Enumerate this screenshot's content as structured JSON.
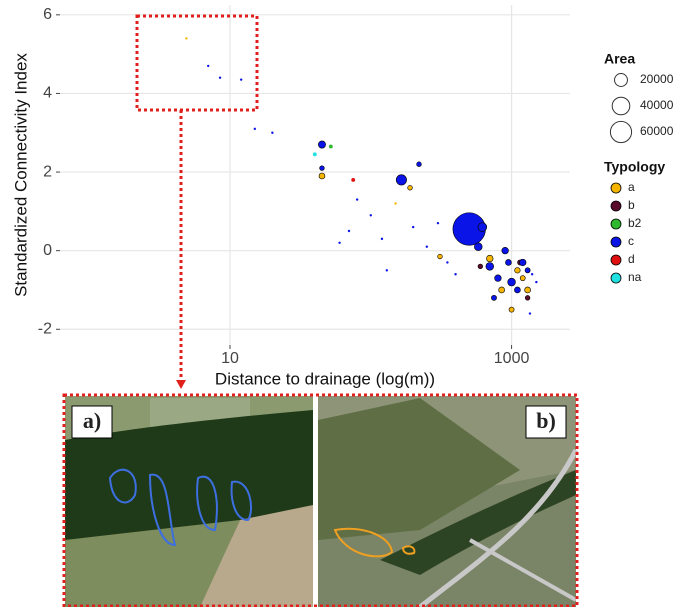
{
  "chart_data": {
    "type": "bubble",
    "x_label": "Distance to drainage (log(m))",
    "y_label": "Standardized Connectivity Index",
    "xlim": [
      0.62,
      2600
    ],
    "ylim": [
      -2.4,
      6.25
    ],
    "log_x": true,
    "grid": true,
    "xticks": [
      10,
      1000
    ],
    "yticks": [
      -2,
      0,
      2,
      4,
      6
    ],
    "size_legend": {
      "title": "Area",
      "values": [
        20000,
        40000,
        60000
      ]
    },
    "legend_title": "Typology",
    "series": [
      {
        "name": "a",
        "color": "#f4b400",
        "x": [
          4.9,
          45,
          190,
          310,
          700,
          850,
          1100,
          1300,
          1000,
          1200,
          600,
          150
        ],
        "values": [
          5.4,
          1.9,
          1.6,
          -0.15,
          -0.2,
          -1.0,
          -0.5,
          -1.0,
          -1.5,
          -0.7,
          -0.4,
          1.2
        ],
        "sizes": [
          100,
          3000,
          1500,
          1500,
          4000,
          3000,
          2500,
          3000,
          2000,
          2000,
          800,
          100
        ]
      },
      {
        "name": "b",
        "color": "#5a0a2a",
        "x": [
          600,
          1150,
          1300
        ],
        "values": [
          -0.4,
          -0.3,
          -1.2
        ],
        "sizes": [
          1500,
          2000,
          1500
        ]
      },
      {
        "name": "b2",
        "color": "#2db82d",
        "x": [
          52
        ],
        "values": [
          2.65
        ],
        "sizes": [
          800
        ]
      },
      {
        "name": "c",
        "color": "#0a14e6",
        "x": [
          8.5,
          12,
          7,
          15,
          20,
          45,
          45,
          165,
          220,
          500,
          620,
          580,
          700,
          900,
          1000,
          1200,
          1100,
          800,
          1300,
          950,
          750,
          80,
          100,
          70,
          120,
          200,
          250,
          300,
          400,
          350,
          1500,
          1400,
          1350,
          60,
          130,
          450
        ],
        "values": [
          4.4,
          4.35,
          4.7,
          3.1,
          3.0,
          2.7,
          2.1,
          1.8,
          2.2,
          0.55,
          0.6,
          0.1,
          -0.4,
          0.0,
          -0.8,
          -0.3,
          -1.0,
          -0.7,
          -0.5,
          -0.3,
          -1.2,
          1.3,
          0.9,
          0.5,
          0.3,
          0.6,
          0.1,
          0.7,
          -0.6,
          -0.3,
          -0.8,
          -0.6,
          -1.6,
          0.2,
          -0.5,
          0.9
        ],
        "sizes": [
          100,
          100,
          100,
          100,
          100,
          5000,
          1500,
          12000,
          1500,
          150000,
          8000,
          6000,
          6000,
          4000,
          6000,
          4000,
          3000,
          4000,
          2000,
          3000,
          2000,
          100,
          100,
          100,
          100,
          100,
          100,
          100,
          100,
          100,
          100,
          100,
          100,
          100,
          100,
          100
        ]
      },
      {
        "name": "d",
        "color": "#e01010",
        "x": [
          75
        ],
        "values": [
          1.8
        ],
        "sizes": [
          800
        ]
      },
      {
        "name": "na",
        "color": "#20e0e0",
        "x": [
          40
        ],
        "values": [
          2.45
        ],
        "sizes": [
          800
        ]
      }
    ]
  },
  "panels": [
    {
      "label": "a)"
    },
    {
      "label": "b)"
    }
  ]
}
